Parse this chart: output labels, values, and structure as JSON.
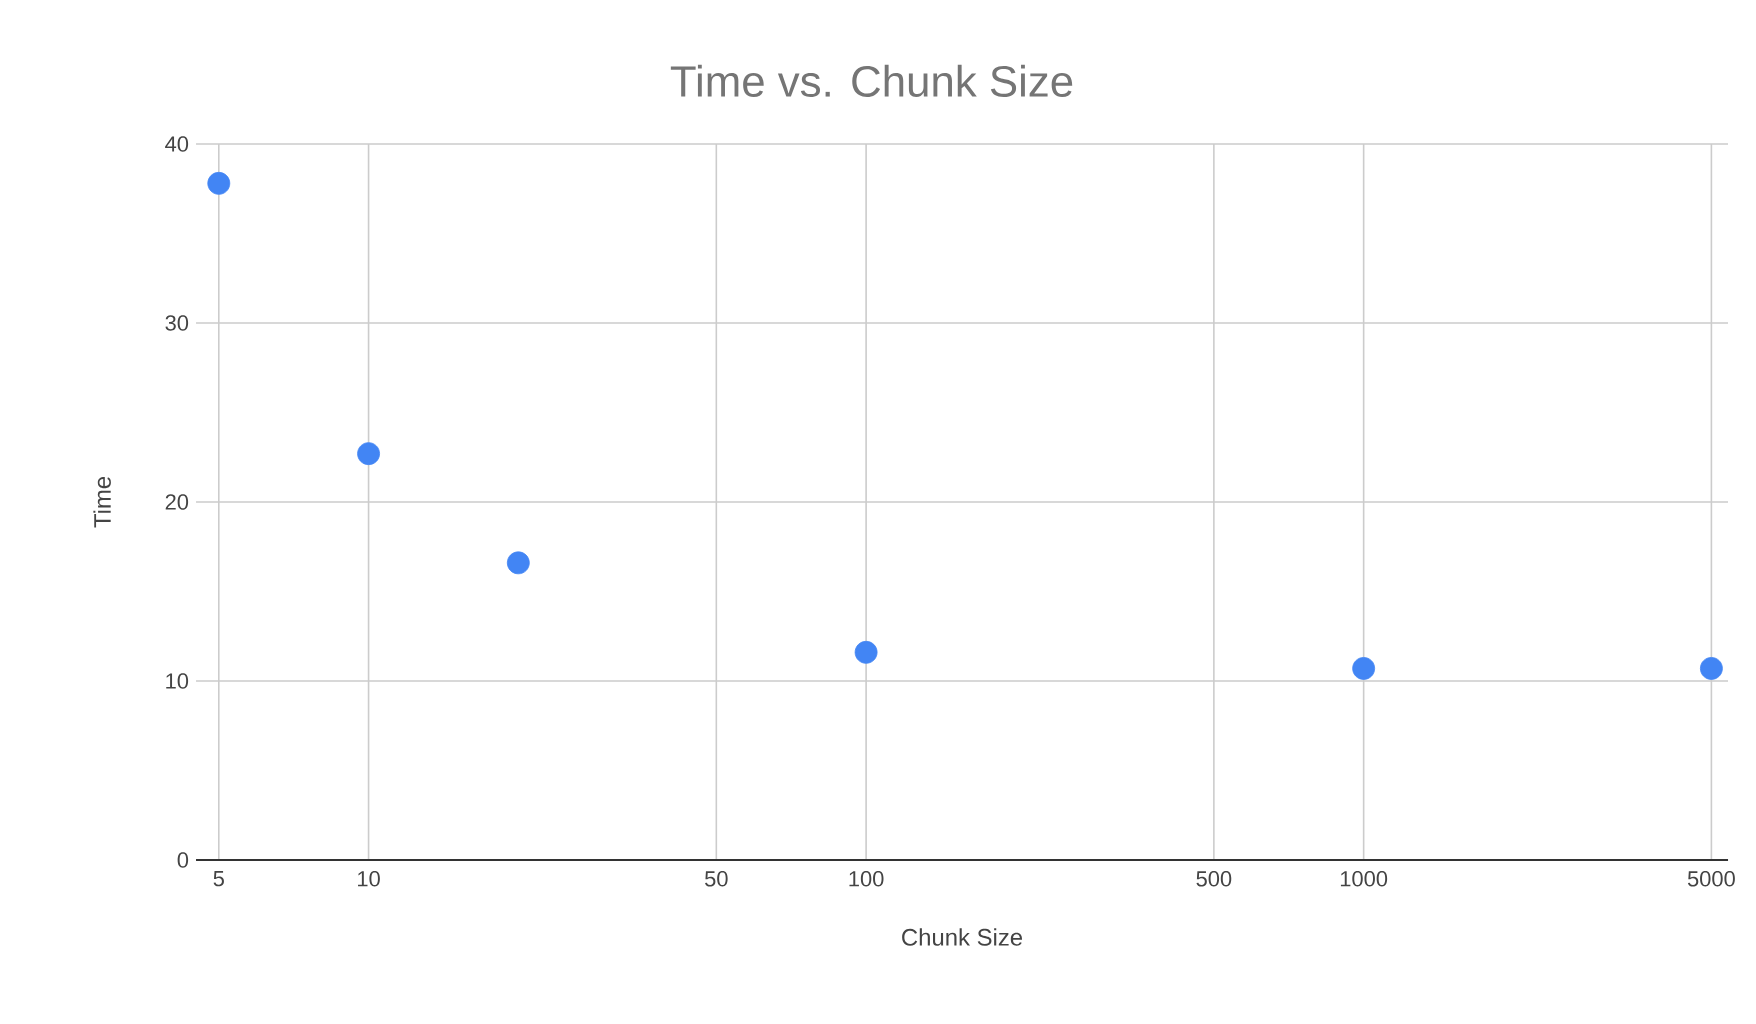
{
  "chart_data": {
    "type": "scatter",
    "title": "Time vs. Chunk Size",
    "xlabel": "Chunk Size",
    "ylabel": "Time",
    "log": "x",
    "x": [
      5,
      10,
      20,
      100,
      1000,
      5000
    ],
    "values": [
      37.8,
      22.7,
      16.6,
      11.6,
      10.7,
      10.7
    ],
    "color": "#4285f4",
    "grid": true,
    "xlim": [
      4.5,
      5400
    ],
    "xticks": [
      5,
      10,
      50,
      100,
      500,
      1000,
      5000
    ],
    "ylim": [
      0,
      40
    ],
    "yticks": [
      0,
      10,
      20,
      30,
      40
    ]
  }
}
